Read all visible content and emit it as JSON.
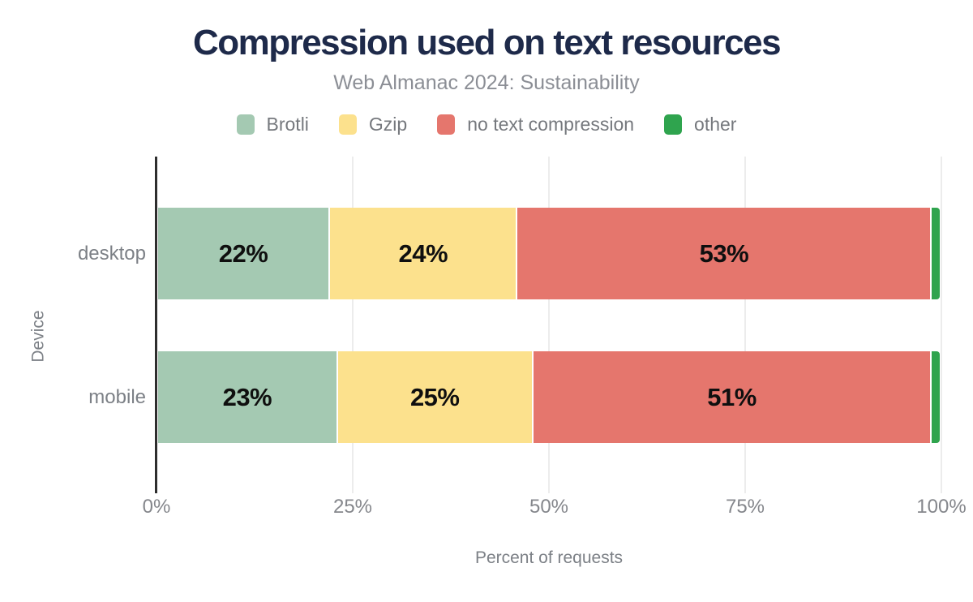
{
  "chart_data": {
    "type": "bar",
    "orientation": "horizontal",
    "stacked": true,
    "title": "Compression used on text resources",
    "subtitle": "Web Almanac 2024: Sustainability",
    "xlabel": "Percent of requests",
    "ylabel": "Device",
    "categories": [
      "desktop",
      "mobile"
    ],
    "series": [
      {
        "name": "Brotli",
        "color": "#a4c9b2",
        "values": [
          22,
          23
        ],
        "show_labels": true
      },
      {
        "name": "Gzip",
        "color": "#fce18d",
        "values": [
          24,
          25
        ],
        "show_labels": true
      },
      {
        "name": "no text compression",
        "color": "#e5766d",
        "values": [
          53,
          51
        ],
        "show_labels": true
      },
      {
        "name": "other",
        "color": "#2fa44e",
        "values": [
          1,
          1
        ],
        "show_labels": false
      }
    ],
    "value_label_suffix": "%",
    "xlim": [
      0,
      100
    ],
    "x_ticks": [
      {
        "value": 0,
        "label": "0%"
      },
      {
        "value": 25,
        "label": "25%"
      },
      {
        "value": 50,
        "label": "50%"
      },
      {
        "value": 75,
        "label": "75%"
      },
      {
        "value": 100,
        "label": "100%"
      }
    ],
    "grid": true,
    "legend_position": "top"
  },
  "colors": {
    "title": "#1e2a4a",
    "subtitle": "#8b8e95",
    "legend_text": "#75787d",
    "category_text": "#7c8086",
    "tick_text": "#85878c",
    "axis_title_text": "#7c8086",
    "data_label": "#0f0f0f",
    "gridline": "#ececec",
    "axis_line": "#2e2e2e"
  }
}
